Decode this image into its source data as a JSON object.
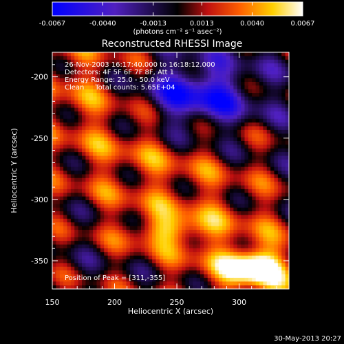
{
  "chart_data": {
    "type": "heatmap",
    "title": "Reconstructed RHESSI Image",
    "xlabel": "Heliocentric X (arcsec)",
    "ylabel": "Heliocentric Y (arcsec)",
    "xlim": [
      150,
      340
    ],
    "ylim": [
      -373,
      -180
    ],
    "x_ticks": [
      "150",
      "200",
      "250",
      "300"
    ],
    "x_tick_values": [
      150,
      200,
      250,
      300
    ],
    "y_ticks": [
      "-200",
      "-250",
      "-300",
      "-350"
    ],
    "y_tick_values": [
      -200,
      -250,
      -300,
      -350
    ],
    "colorbar": {
      "ticks": [
        "-0.0067",
        "-0.0040",
        "-0.0013",
        "0.0013",
        "0.0040",
        "0.0067"
      ],
      "tick_values": [
        -0.0067,
        -0.004,
        -0.0013,
        0.0013,
        0.004,
        0.0067
      ],
      "range": [
        -0.0067,
        0.0067
      ],
      "unit_label": "(photons cm⁻² s⁻¹ asec⁻²)",
      "colormap": [
        "#0000ff",
        "#5020c0",
        "#000000",
        "#c01010",
        "#ff6000",
        "#ffd000",
        "#ffffff"
      ]
    },
    "annotations": [
      "26-Nov-2003 16:17:40.000 to 16:18:12.000",
      "Detectors: 4F 5F 6F 7F 8F, Att 1",
      "Energy Range: 25.0 - 50.0 keV",
      "Clean     Total counts: 5.65E+04"
    ],
    "peak_label": "Position of Peak = [311,-355]",
    "peak": [
      311,
      -355
    ],
    "footer_timestamp": "30-May-2013 20:27"
  }
}
